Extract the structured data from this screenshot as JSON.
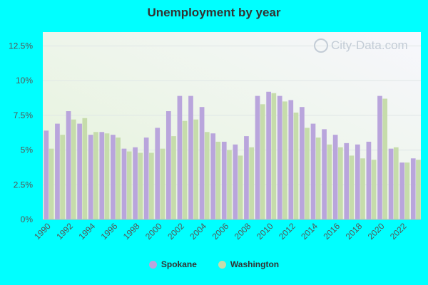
{
  "chart_data": {
    "type": "bar",
    "title": "Unemployment by year",
    "categories": [
      "1990",
      "1991",
      "1992",
      "1993",
      "1994",
      "1995",
      "1996",
      "1997",
      "1998",
      "1999",
      "2000",
      "2001",
      "2002",
      "2003",
      "2004",
      "2005",
      "2006",
      "2007",
      "2008",
      "2009",
      "2010",
      "2011",
      "2012",
      "2013",
      "2014",
      "2015",
      "2016",
      "2017",
      "2018",
      "2019",
      "2020",
      "2021",
      "2022",
      "2023"
    ],
    "xtick_labels": [
      "1990",
      "1992",
      "1994",
      "1996",
      "1998",
      "2000",
      "2002",
      "2004",
      "2006",
      "2008",
      "2010",
      "2012",
      "2014",
      "2016",
      "2018",
      "2020",
      "2022"
    ],
    "series": [
      {
        "name": "Spokane",
        "color": "#b9a5dc",
        "values": [
          6.4,
          6.9,
          7.8,
          6.9,
          6.1,
          6.3,
          6.1,
          5.1,
          5.2,
          5.9,
          6.6,
          7.8,
          8.9,
          8.9,
          8.1,
          6.2,
          5.6,
          5.4,
          6.0,
          8.9,
          9.2,
          8.9,
          8.6,
          8.1,
          6.9,
          6.5,
          6.1,
          5.5,
          5.4,
          5.6,
          8.9,
          5.1,
          4.1,
          4.4
        ]
      },
      {
        "name": "Washington",
        "color": "#c6dcab",
        "values": [
          5.1,
          6.1,
          7.2,
          7.3,
          6.3,
          6.2,
          5.9,
          4.9,
          4.8,
          4.8,
          5.1,
          6.0,
          7.1,
          7.2,
          6.3,
          5.6,
          5.0,
          4.6,
          5.2,
          8.3,
          9.1,
          8.5,
          7.7,
          6.6,
          5.9,
          5.4,
          5.2,
          4.6,
          4.4,
          4.3,
          8.7,
          5.2,
          4.1,
          4.3
        ]
      }
    ],
    "yticks": [
      "0%",
      "2.5%",
      "5%",
      "7.5%",
      "10%",
      "12.5%"
    ],
    "ylim": [
      0,
      13.5
    ],
    "grid": true,
    "legend": "bottom-center"
  },
  "watermark": "City-Data.com"
}
